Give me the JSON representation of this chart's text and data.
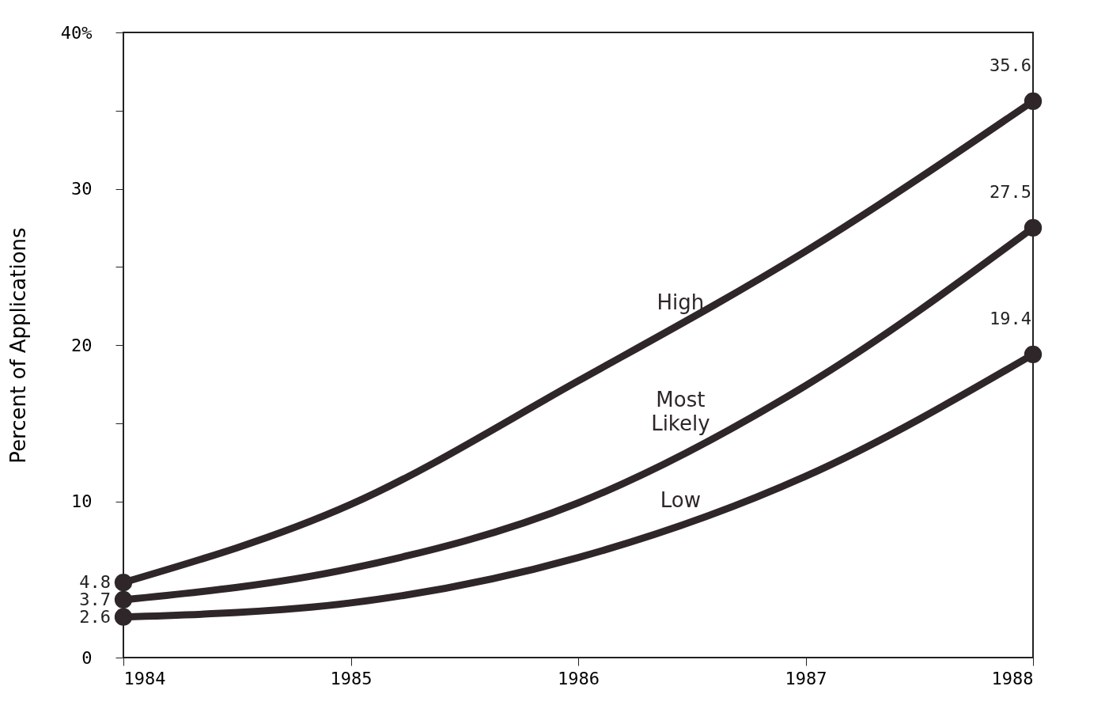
{
  "chart_data": {
    "type": "line",
    "ylabel": "Percent of Applications",
    "x": [
      1984,
      1985,
      1986,
      1987,
      1988
    ],
    "xlim": [
      1984,
      1988
    ],
    "xticks": [
      1984,
      1985,
      1986,
      1987,
      1988
    ],
    "ylim": [
      0,
      40
    ],
    "yticks": [
      0,
      {
        "value": 5,
        "label": null
      },
      10,
      {
        "value": 15,
        "label": null
      },
      20,
      {
        "value": 25,
        "label": null
      },
      30,
      {
        "value": 35,
        "label": null
      },
      {
        "value": 40,
        "label": "40%"
      }
    ],
    "grid": false,
    "line_style": "solid",
    "series": [
      {
        "name": "High",
        "color": "#2e2628",
        "values": [
          4.8,
          9.8,
          17.7,
          26.0,
          35.6
        ],
        "value_labels": [
          "4.8",
          null,
          null,
          null,
          "35.6"
        ]
      },
      {
        "name": "Most Likely",
        "color": "#2e2628",
        "values": [
          3.7,
          5.7,
          9.9,
          17.4,
          27.5
        ],
        "value_labels": [
          "3.7",
          null,
          null,
          null,
          "27.5"
        ]
      },
      {
        "name": "Low",
        "color": "#2e2628",
        "values": [
          2.6,
          3.5,
          6.4,
          11.6,
          19.4
        ],
        "value_labels": [
          "2.6",
          null,
          null,
          null,
          "19.4"
        ]
      }
    ]
  }
}
